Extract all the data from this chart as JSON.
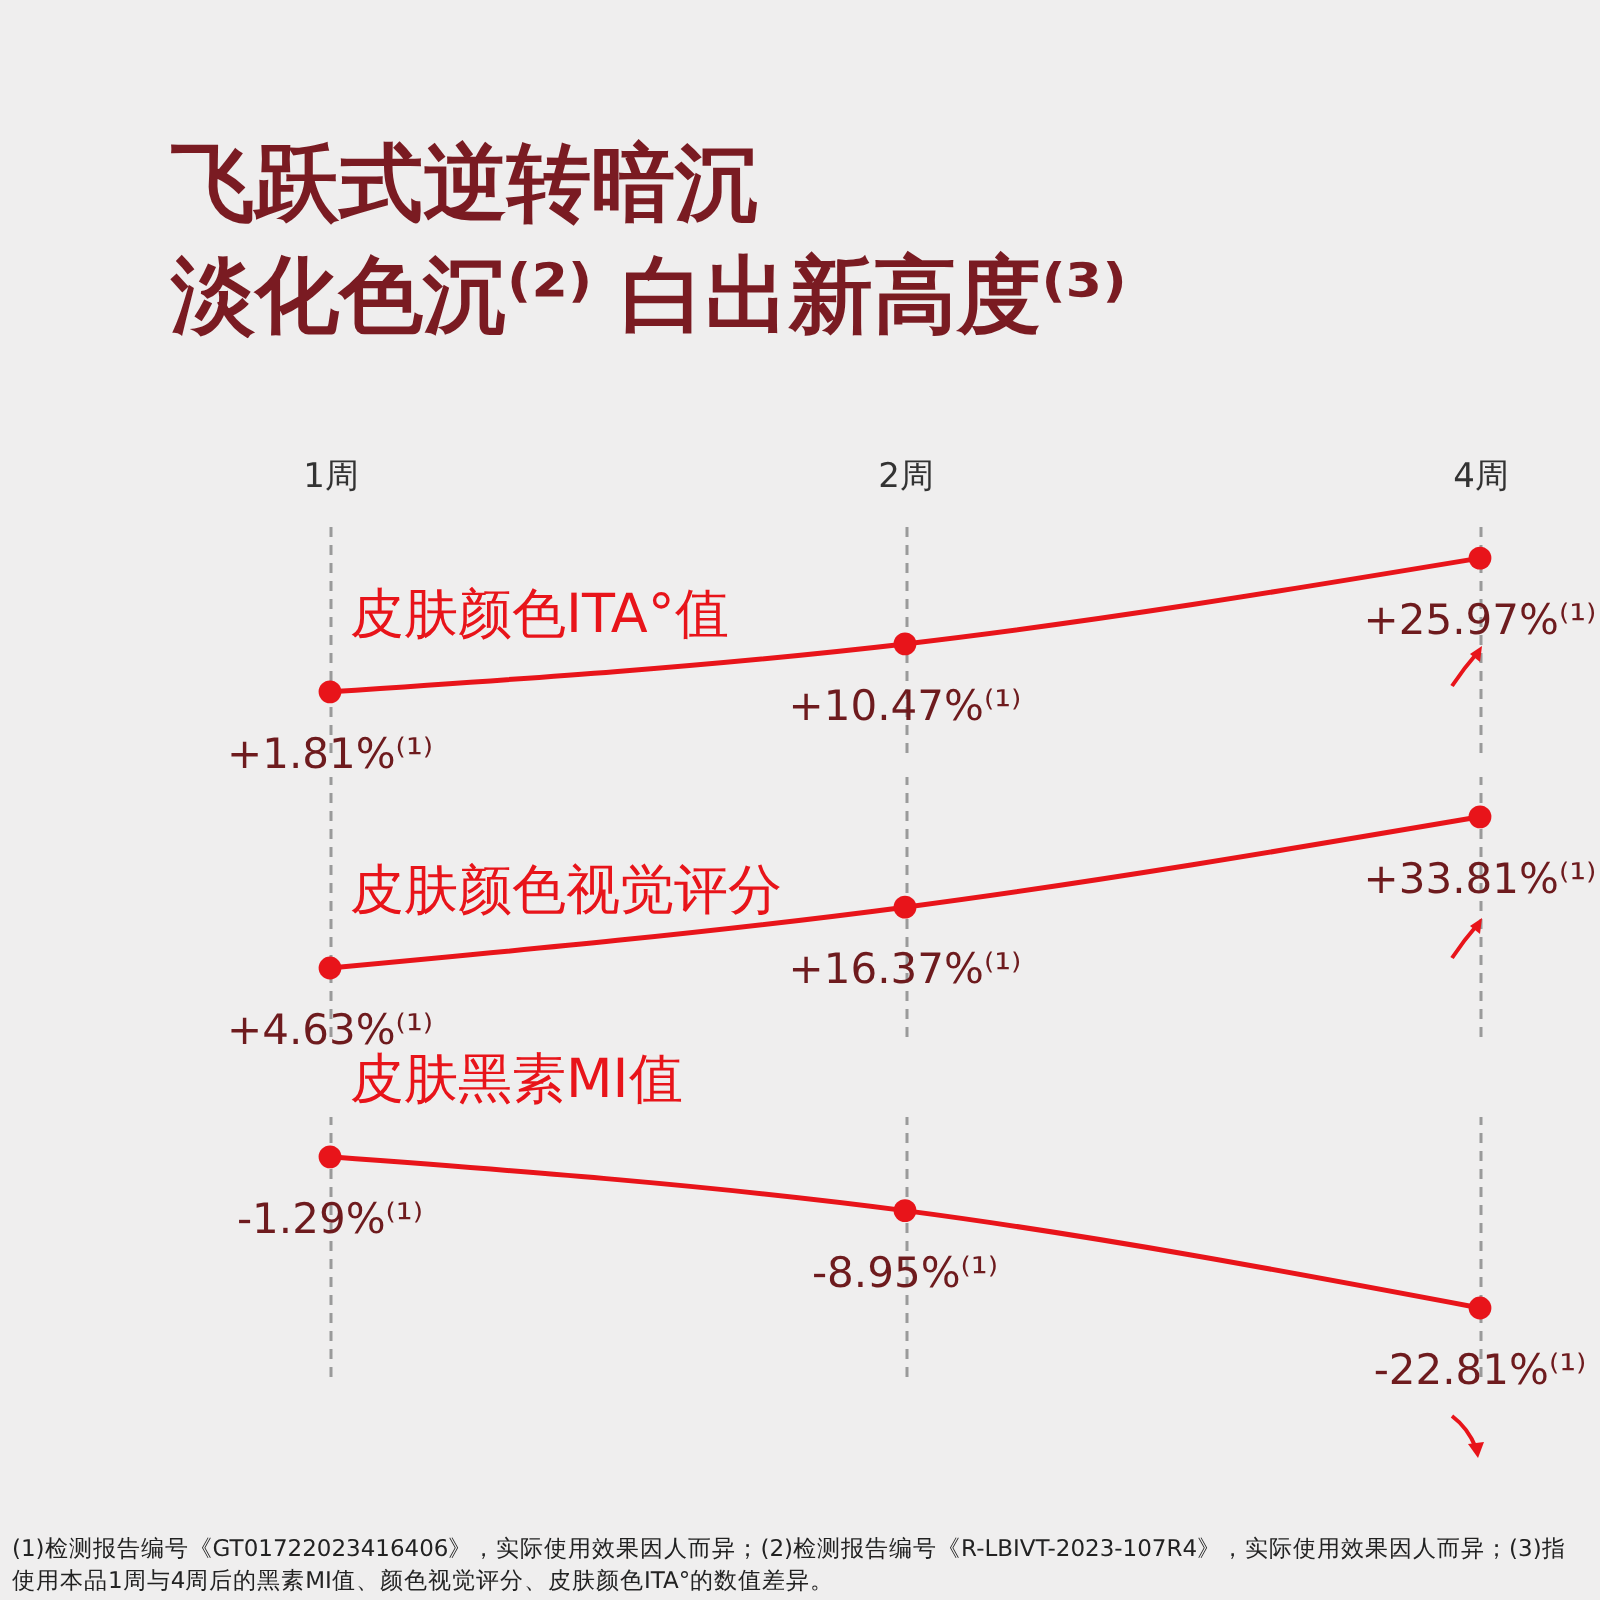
{
  "chart_data": [
    {
      "type": "line",
      "title": "飞跃式逆转暗沉",
      "subtitle": "淡化色沉⁽²⁾ 白出新高度⁽³⁾",
      "categories": [
        "1周",
        "2周",
        "4周"
      ],
      "series": [
        {
          "name": "皮肤颜色ITA°值",
          "color": "#e8141a",
          "values": [
            1.81,
            10.47,
            25.97
          ],
          "value_labels": [
            "+1.81%⁽¹⁾",
            "+10.47%⁽¹⁾",
            "+25.97%⁽¹⁾"
          ]
        }
      ],
      "marker": "circle",
      "grid": "x",
      "tick_labels": "x"
    },
    {
      "type": "line",
      "categories": [
        null,
        null,
        null
      ],
      "series": [
        {
          "name": "皮肤颜色视觉评分",
          "color": "#e8141a",
          "values": [
            4.63,
            16.37,
            33.81
          ],
          "value_labels": [
            "+4.63%⁽¹⁾",
            "+16.37%⁽¹⁾",
            "+33.81%⁽¹⁾"
          ]
        }
      ],
      "marker": "circle",
      "grid": "x",
      "tick_labels": false
    },
    {
      "type": "line",
      "categories": [
        null,
        null,
        null
      ],
      "series": [
        {
          "name": "皮肤黑素MI值",
          "color": "#e8141a",
          "values": [
            -1.29,
            -8.95,
            -22.81
          ],
          "value_labels": [
            "-1.29%⁽¹⁾",
            "-8.95%⁽¹⁾",
            "-22.81%⁽¹⁾"
          ]
        }
      ],
      "marker": "circle",
      "grid": "x",
      "tick_labels": false,
      "annotations": [
        "(1)检测报告编号《GT01722023416406》，实际使用效果因人而异；(2)检测报告编号《R-LBIVT-2023-107R4》，实际使用效果因人而异；(3)指使用本品1周与4周后的黑素MI值、颜色视觉评分、皮肤颜色ITA°的数值差异。"
      ]
    }
  ]
}
